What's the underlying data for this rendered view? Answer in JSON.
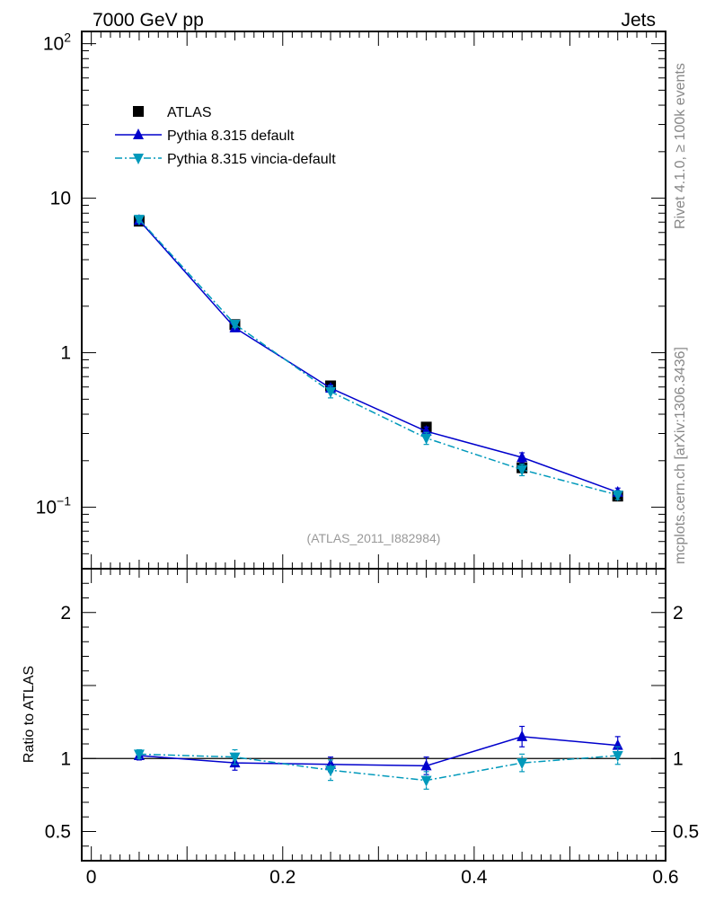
{
  "header": {
    "energy_label": "7000 GeV pp",
    "process_label": "Jets"
  },
  "side_labels": {
    "rivet": "Rivet 4.1.0, ≥ 100k events",
    "mcplots": "mcplots.cern.ch [arXiv:1306.3436]"
  },
  "chart_data": [
    {
      "type": "scatter",
      "panel": "main",
      "title": "",
      "watermark": "(ATLAS_2011_I882984)",
      "xlabel": "",
      "ylabel": "",
      "yscale": "log",
      "xlim": [
        -0.01,
        0.6
      ],
      "ylim": [
        0.04,
        120
      ],
      "y_ticks": [
        {
          "value": 100,
          "base": "10",
          "exp": "2"
        },
        {
          "value": 10,
          "base": "10",
          "exp": ""
        },
        {
          "value": 1,
          "base": "1",
          "exp": ""
        },
        {
          "value": 0.1,
          "base": "10",
          "exp": "−1"
        }
      ],
      "legend_position": "top-left",
      "x": [
        0.05,
        0.15,
        0.25,
        0.35,
        0.45,
        0.55
      ],
      "series": [
        {
          "name": "ATLAS",
          "marker": "square",
          "color": "#000000",
          "line": "none",
          "values": [
            7.1,
            1.52,
            0.61,
            0.33,
            0.18,
            0.118
          ]
        },
        {
          "name": "Pythia 8.315 default",
          "marker": "triangle-up",
          "color": "#0000cc",
          "line": "solid",
          "values": [
            7.2,
            1.45,
            0.59,
            0.31,
            0.21,
            0.125
          ],
          "err_lo": [
            0.3,
            0.06,
            0.03,
            0.02,
            0.015,
            0.008
          ],
          "err_hi": [
            0.3,
            0.06,
            0.03,
            0.02,
            0.015,
            0.008
          ]
        },
        {
          "name": "Pythia 8.315 vincia-default",
          "marker": "triangle-down",
          "color": "#0099bb",
          "line": "dashdot",
          "values": [
            7.3,
            1.53,
            0.56,
            0.28,
            0.175,
            0.12
          ],
          "err_lo": [
            0.3,
            0.07,
            0.05,
            0.025,
            0.015,
            0.008
          ],
          "err_hi": [
            0.3,
            0.07,
            0.05,
            0.025,
            0.015,
            0.008
          ]
        }
      ]
    },
    {
      "type": "scatter",
      "panel": "ratio",
      "xlabel": "",
      "ylabel": "Ratio to ATLAS",
      "xlim": [
        -0.01,
        0.6
      ],
      "ylim": [
        0.3,
        2.3
      ],
      "x_ticks": [
        {
          "value": 0,
          "label": "0"
        },
        {
          "value": 0.2,
          "label": "0.2"
        },
        {
          "value": 0.4,
          "label": "0.4"
        },
        {
          "value": 0.6,
          "label": "0.6"
        }
      ],
      "y_ticks": [
        {
          "value": 2,
          "label": "2"
        },
        {
          "value": 1,
          "label": "1"
        },
        {
          "value": 0.5,
          "label": "0.5"
        }
      ],
      "reference_line": 1,
      "x": [
        0.05,
        0.15,
        0.25,
        0.35,
        0.45,
        0.55
      ],
      "series": [
        {
          "name": "Pythia 8.315 default",
          "marker": "triangle-up",
          "color": "#0000cc",
          "line": "solid",
          "values": [
            1.02,
            0.97,
            0.96,
            0.95,
            1.15,
            1.09
          ],
          "err_lo": [
            0.03,
            0.05,
            0.05,
            0.06,
            0.07,
            0.06
          ],
          "err_hi": [
            0.03,
            0.05,
            0.05,
            0.06,
            0.07,
            0.06
          ]
        },
        {
          "name": "Pythia 8.315 vincia-default",
          "marker": "triangle-down",
          "color": "#0099bb",
          "line": "dashdot",
          "values": [
            1.03,
            1.01,
            0.92,
            0.85,
            0.97,
            1.02
          ],
          "err_lo": [
            0.03,
            0.05,
            0.07,
            0.06,
            0.06,
            0.06
          ],
          "err_hi": [
            0.03,
            0.05,
            0.07,
            0.06,
            0.06,
            0.06
          ]
        }
      ]
    }
  ]
}
